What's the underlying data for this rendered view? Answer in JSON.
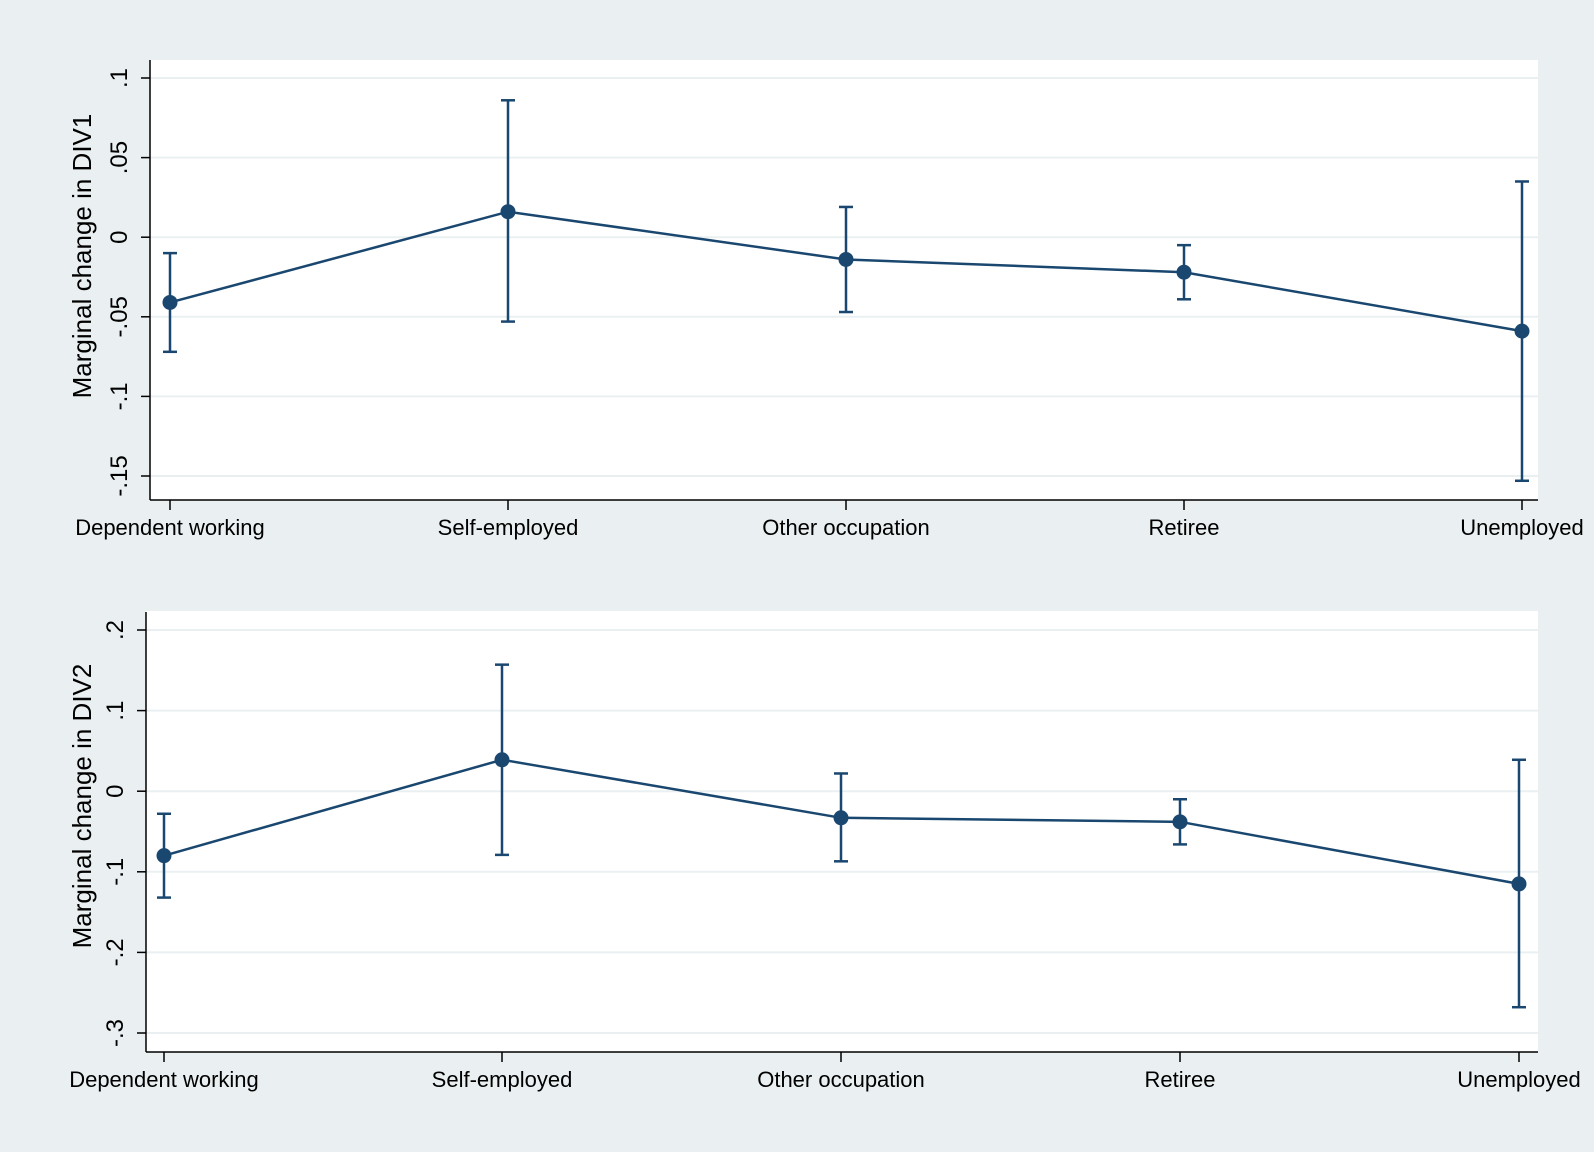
{
  "colors": {
    "outer_background": "#eaf0f1",
    "plot_background": "#ffffff",
    "gridline": "#eaf0f1",
    "series": "#1a476f",
    "axis": "#000000"
  },
  "chart_data": [
    {
      "type": "line",
      "marker": "circle",
      "error_bars": true,
      "categories": [
        "Dependent working",
        "Self-employed",
        "Other occupation",
        "Retiree",
        "Unemployed"
      ],
      "values": [
        -0.041,
        0.016,
        -0.014,
        -0.022,
        -0.059
      ],
      "ci_lower": [
        -0.072,
        -0.053,
        -0.047,
        -0.039,
        -0.153
      ],
      "ci_upper": [
        -0.01,
        0.086,
        0.019,
        -0.005,
        0.035
      ],
      "ylabel": "Marginal change in DIV1",
      "xlabel": "",
      "ylim": [
        -0.165,
        0.1
      ],
      "yticks": [
        0.1,
        0.05,
        0,
        -0.05,
        -0.1,
        -0.15
      ],
      "ytick_labels": [
        ".1",
        ".05",
        "0",
        "-.05",
        "-.1",
        "-.15"
      ],
      "grid": true
    },
    {
      "type": "line",
      "marker": "circle",
      "error_bars": true,
      "categories": [
        "Dependent working",
        "Self-employed",
        "Other occupation",
        "Retiree",
        "Unemployed"
      ],
      "values": [
        -0.08,
        0.039,
        -0.033,
        -0.038,
        -0.115
      ],
      "ci_lower": [
        -0.132,
        -0.079,
        -0.087,
        -0.066,
        -0.268
      ],
      "ci_upper": [
        -0.028,
        0.157,
        0.022,
        -0.01,
        0.039
      ],
      "ylabel": "Marginal change in DIV2",
      "xlabel": "",
      "ylim": [
        -0.32,
        0.2
      ],
      "yticks": [
        0.2,
        0.1,
        0,
        -0.1,
        -0.2,
        -0.3
      ],
      "ytick_labels": [
        ".2",
        ".1",
        "0",
        "-.1",
        "-.2",
        "-.3"
      ],
      "grid": true
    }
  ]
}
